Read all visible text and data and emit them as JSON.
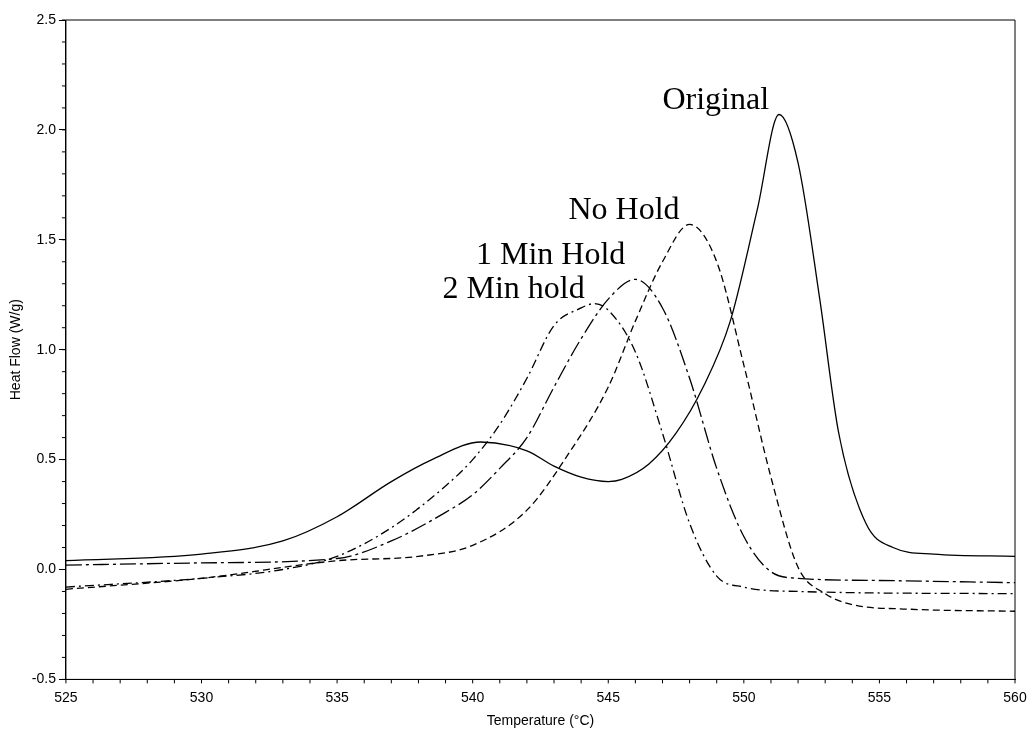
{
  "chart_data": {
    "type": "line",
    "xlabel": "Temperature (°C)",
    "ylabel": "Heat Flow (W/g)",
    "xlim": [
      525,
      560
    ],
    "xticks": [
      525,
      530,
      535,
      540,
      545,
      550,
      555,
      560
    ],
    "ylim": [
      -0.5,
      2.5
    ],
    "yticks": [
      {
        "value": -0.5,
        "label": "-0.5"
      },
      {
        "value": 0,
        "label": "0.0"
      },
      0.5,
      {
        "value": 1,
        "label": "1.0"
      },
      1.5,
      {
        "value": 2,
        "label": "2.0"
      },
      2.5
    ],
    "grid": false,
    "legend": false,
    "marker": "none",
    "series": [
      {
        "name": "Original",
        "color": "#000000",
        "line_style": "solid",
        "x": [
          525,
          530,
          533,
          535,
          537,
          538.5,
          540.3,
          542,
          543,
          544,
          545,
          545.5,
          546.5,
          547.5,
          548.5,
          549.5,
          550.5,
          551.3,
          552,
          552.8,
          553.5,
          554.5,
          555.5,
          557,
          560
        ],
        "values": [
          0.04,
          0.07,
          0.13,
          0.24,
          0.4,
          0.5,
          0.58,
          0.54,
          0.47,
          0.42,
          0.4,
          0.41,
          0.48,
          0.62,
          0.83,
          1.13,
          1.64,
          2.07,
          1.85,
          1.23,
          0.62,
          0.21,
          0.1,
          0.07,
          0.06
        ]
      },
      {
        "name": "No Hold",
        "color": "#000000",
        "line_style": "dashed",
        "x": [
          525,
          530,
          535,
          538,
          540,
          542,
          543.5,
          545,
          546,
          547,
          548,
          549,
          550,
          551,
          552,
          553,
          554,
          556,
          560
        ],
        "values": [
          -0.09,
          -0.04,
          0.04,
          0.06,
          0.11,
          0.27,
          0.52,
          0.83,
          1.13,
          1.4,
          1.57,
          1.4,
          0.93,
          0.42,
          0.01,
          -0.11,
          -0.16,
          -0.18,
          -0.19
        ]
      },
      {
        "name": "1 Min Hold",
        "color": "#000000",
        "line_style": "dashed",
        "x": [
          525,
          530,
          535,
          537,
          539,
          540,
          541,
          542,
          543,
          544,
          545,
          546,
          547,
          548,
          549,
          550,
          551,
          552,
          555,
          560
        ],
        "values": [
          0.02,
          0.03,
          0.05,
          0.13,
          0.26,
          0.34,
          0.46,
          0.6,
          0.83,
          1.05,
          1.23,
          1.32,
          1.19,
          0.87,
          0.46,
          0.15,
          -0.01,
          -0.04,
          -0.05,
          -0.06
        ]
      },
      {
        "name": "2 Min hold",
        "color": "#000000",
        "line_style": "dashed",
        "x": [
          525,
          530,
          533,
          535,
          537,
          539,
          540,
          541,
          542,
          543,
          544,
          544.5,
          545,
          546,
          547,
          548,
          549,
          550,
          552,
          560
        ],
        "values": [
          -0.08,
          -0.04,
          0,
          0.06,
          0.19,
          0.38,
          0.5,
          0.66,
          0.87,
          1.11,
          1.19,
          1.21,
          1.18,
          0.99,
          0.62,
          0.21,
          -0.03,
          -0.08,
          -0.1,
          -0.11
        ]
      }
    ]
  }
}
